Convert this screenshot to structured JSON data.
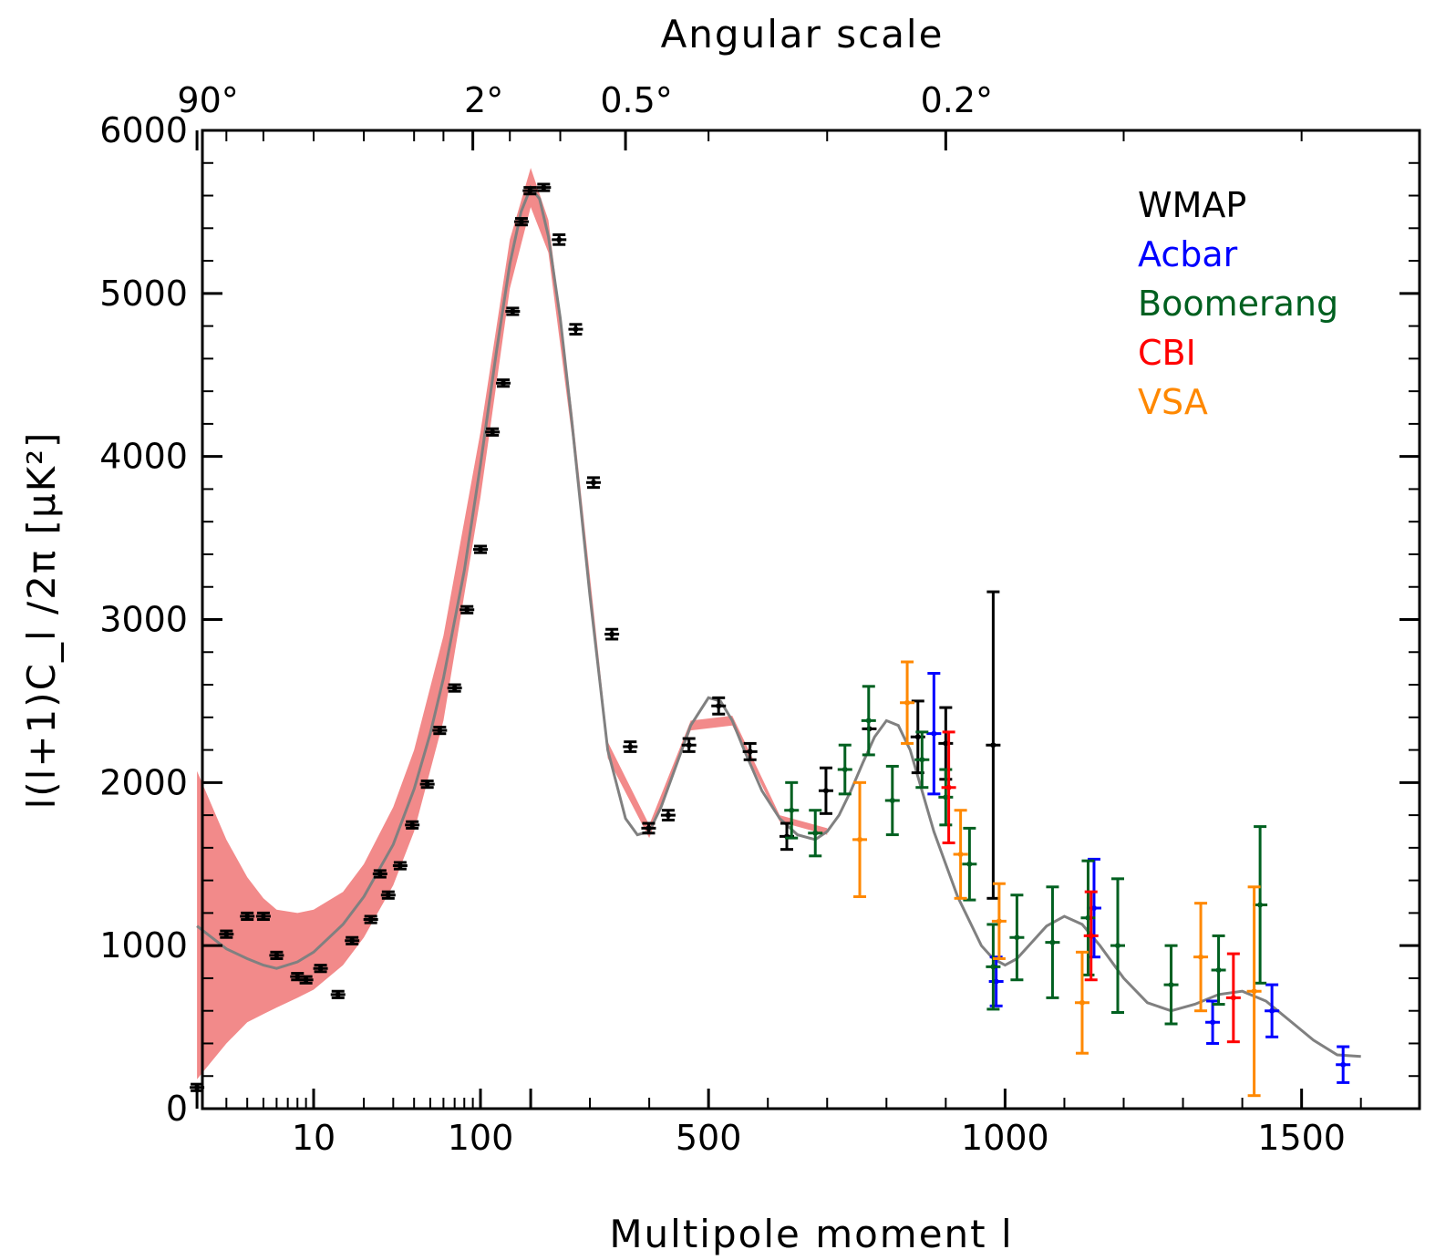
{
  "chart_data": {
    "type": "scatter",
    "title": "",
    "xlabel": "Multipole moment l",
    "ylabel": "l(l+1)C_l /2π [μK²]",
    "top_axis_title": "Angular scale",
    "top_tick_labels": [
      "90°",
      "2°",
      "0.5°",
      "0.2°"
    ],
    "top_tick_l": [
      2,
      90,
      360,
      900
    ],
    "x_scale": "log from 2 to 200, linear from 200 to 1600",
    "xlim": [
      2,
      1600
    ],
    "ylim": [
      0,
      6000
    ],
    "x_ticks": [
      10,
      100,
      500,
      1000,
      1500
    ],
    "y_ticks": [
      0,
      1000,
      2000,
      3000,
      4000,
      5000,
      6000
    ],
    "grid": false,
    "legend_position": "top-right",
    "legend": [
      {
        "name": "WMAP",
        "color": "#000000"
      },
      {
        "name": "Acbar",
        "color": "#0000ff"
      },
      {
        "name": "Boomerang",
        "color": "#006020"
      },
      {
        "name": "CBI",
        "color": "#ff0000"
      },
      {
        "name": "VSA",
        "color": "#ff8800"
      }
    ],
    "model_color": "#808080",
    "band_color": "#f28a8a",
    "model_curve": {
      "x": [
        2,
        3,
        4,
        5,
        6,
        8,
        10,
        15,
        20,
        30,
        40,
        50,
        60,
        80,
        100,
        125,
        150,
        175,
        200,
        215,
        230,
        250,
        270,
        300,
        330,
        360,
        380,
        400,
        420,
        440,
        470,
        500,
        520,
        540,
        560,
        590,
        620,
        650,
        680,
        700,
        720,
        740,
        760,
        780,
        800,
        820,
        840,
        860,
        880,
        900,
        920,
        940,
        960,
        980,
        1000,
        1020,
        1040,
        1070,
        1100,
        1130,
        1160,
        1200,
        1240,
        1280,
        1320,
        1360,
        1400,
        1440,
        1480,
        1520,
        1560,
        1600
      ],
      "y": [
        1120,
        980,
        920,
        880,
        860,
        900,
        960,
        1130,
        1300,
        1620,
        1960,
        2300,
        2640,
        3300,
        3950,
        4650,
        5180,
        5500,
        5650,
        5580,
        5350,
        4850,
        4200,
        3150,
        2200,
        1780,
        1680,
        1700,
        1850,
        2050,
        2350,
        2520,
        2500,
        2380,
        2200,
        1950,
        1780,
        1680,
        1650,
        1700,
        1800,
        1950,
        2120,
        2280,
        2380,
        2350,
        2200,
        1950,
        1700,
        1500,
        1300,
        1150,
        1000,
        920,
        880,
        920,
        1000,
        1120,
        1180,
        1130,
        1000,
        800,
        650,
        600,
        640,
        700,
        720,
        660,
        540,
        420,
        330,
        320
      ]
    },
    "error_band": {
      "x": [
        2,
        3,
        4,
        5,
        6,
        8,
        10,
        15,
        20,
        30,
        40,
        60,
        100,
        150,
        200,
        230,
        270,
        330,
        400,
        470,
        540,
        620,
        700
      ],
      "lower": [
        180,
        400,
        530,
        580,
        620,
        680,
        730,
        880,
        1050,
        1370,
        1700,
        2380,
        3750,
        5030,
        5530,
        5250,
        4120,
        2150,
        1660,
        2320,
        2350,
        1760,
        1680
      ],
      "upper": [
        2070,
        1650,
        1420,
        1290,
        1220,
        1200,
        1220,
        1330,
        1500,
        1850,
        2200,
        2900,
        4150,
        5330,
        5770,
        5450,
        4280,
        2250,
        1740,
        2380,
        2410,
        1800,
        1720
      ]
    },
    "series": [
      {
        "name": "WMAP",
        "color": "#000000",
        "x": [
          2,
          3,
          4,
          5,
          6,
          8,
          9,
          11,
          14,
          17,
          22,
          25,
          28,
          33,
          39,
          48,
          57,
          70,
          83,
          100,
          118,
          137,
          156,
          176,
          198,
          222,
          248,
          276,
          306,
          337,
          368,
          399,
          432,
          467,
          517,
          570,
          632,
          698,
          771,
          853,
          900,
          980
        ],
        "y": [
          130,
          1070,
          1180,
          1180,
          940,
          810,
          790,
          860,
          700,
          1030,
          1160,
          1440,
          1310,
          1490,
          1740,
          1990,
          2320,
          2580,
          3060,
          3430,
          4150,
          4450,
          4890,
          5440,
          5630,
          5650,
          5330,
          4780,
          3840,
          2910,
          2220,
          1720,
          1800,
          2230,
          2470,
          2190,
          1670,
          1950,
          2330,
          2280,
          2240,
          2230
        ],
        "err": [
          20,
          20,
          20,
          20,
          20,
          20,
          20,
          20,
          20,
          20,
          20,
          20,
          20,
          20,
          20,
          20,
          20,
          20,
          20,
          20,
          20,
          20,
          20,
          20,
          20,
          20,
          30,
          30,
          30,
          30,
          30,
          30,
          30,
          40,
          50,
          50,
          80,
          140,
          0,
          220,
          220,
          940
        ]
      },
      {
        "name": "Acbar",
        "color": "#0000ff",
        "x": [
          880,
          985,
          1150,
          1350,
          1450,
          1570
        ],
        "y": [
          2300,
          780,
          1230,
          530,
          600,
          270
        ],
        "err": [
          370,
          150,
          300,
          130,
          160,
          110
        ]
      },
      {
        "name": "Boomerang",
        "color": "#006020",
        "x": [
          640,
          680,
          730,
          770,
          810,
          860,
          900,
          940,
          980,
          1020,
          1080,
          1140,
          1190,
          1280,
          1360,
          1430
        ],
        "y": [
          1830,
          1690,
          2080,
          2380,
          1890,
          2140,
          1910,
          1500,
          870,
          1050,
          1020,
          1170,
          1000,
          760,
          850,
          1250
        ],
        "err": [
          170,
          140,
          150,
          210,
          210,
          170,
          170,
          220,
          260,
          260,
          340,
          350,
          410,
          240,
          210,
          480
        ]
      },
      {
        "name": "CBI",
        "color": "#ff0000",
        "x": [
          905,
          1145,
          1385
        ],
        "y": [
          1970,
          1060,
          680
        ],
        "err": [
          340,
          270,
          270
        ]
      },
      {
        "name": "VSA",
        "color": "#ff8800",
        "x": [
          755,
          835,
          925,
          990,
          1130,
          1330,
          1420
        ],
        "y": [
          1650,
          2490,
          1560,
          1150,
          650,
          930,
          720
        ],
        "err": [
          350,
          250,
          270,
          230,
          310,
          330,
          640
        ]
      }
    ]
  }
}
